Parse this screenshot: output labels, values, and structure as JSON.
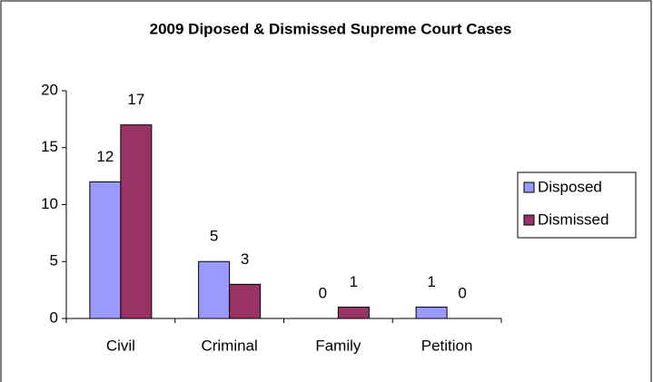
{
  "chart_data": {
    "type": "bar",
    "title": "2009 Diposed & Dismissed Supreme Court Cases",
    "categories": [
      "Civil",
      "Criminal",
      "Family",
      "Petition"
    ],
    "series": [
      {
        "name": "Disposed",
        "color": "#9999ff",
        "values": [
          12,
          5,
          0,
          1
        ]
      },
      {
        "name": "Dismissed",
        "color": "#993366",
        "values": [
          17,
          3,
          1,
          0
        ]
      }
    ],
    "ylim": [
      0,
      20
    ],
    "yticks": [
      0,
      5,
      10,
      15,
      20
    ],
    "grid": false,
    "legend": "right"
  }
}
